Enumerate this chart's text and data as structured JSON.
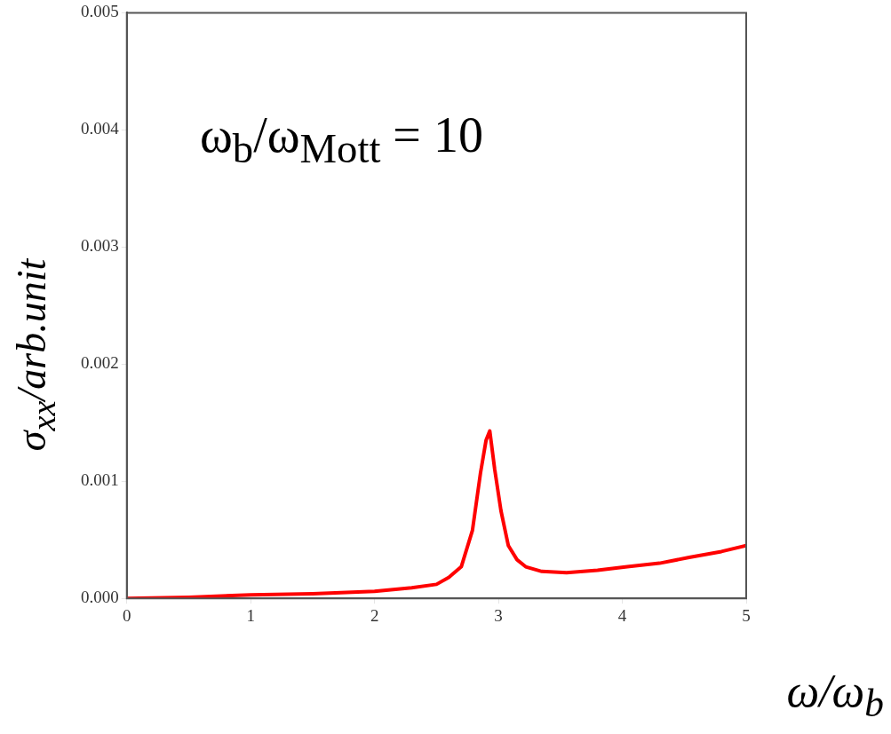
{
  "chart_data": {
    "type": "line",
    "xlabel": "ω/ω$_{b}$",
    "ylabel": "σ$_{xx}$/arb.unit",
    "annotations": [
      "ω$_{b}$/ω$_{Mott}$ = 10"
    ],
    "xlim": [
      0,
      5
    ],
    "xticks": [
      0,
      1,
      2,
      3,
      4,
      5
    ],
    "ylim": [
      0,
      0.005
    ],
    "yticks": [
      {
        "value": 0,
        "label": "0.000"
      },
      {
        "value": 0.001,
        "label": "0.001"
      },
      {
        "value": 0.002,
        "label": "0.002"
      },
      {
        "value": 0.003,
        "label": "0.003"
      },
      {
        "value": 0.004,
        "label": "0.004"
      },
      {
        "value": 0.005,
        "label": "0.005"
      }
    ],
    "grid": false,
    "legend": false,
    "marker": "none",
    "line_style": "solid",
    "series": [
      {
        "color": "#ff0000",
        "x": [
          0,
          0.5,
          1.0,
          1.5,
          2.0,
          2.3,
          2.5,
          2.6,
          2.7,
          2.79,
          2.855,
          2.9,
          2.93,
          2.97,
          3.02,
          3.08,
          3.15,
          3.22,
          3.35,
          3.55,
          3.8,
          4.04,
          4.3,
          4.54,
          4.8,
          5.0
        ],
        "values": [
          0,
          1e-05,
          3e-05,
          4e-05,
          6e-05,
          9e-05,
          0.00012,
          0.00018,
          0.00027,
          0.00058,
          0.00107,
          0.00135,
          0.00143,
          0.0011,
          0.00075,
          0.00045,
          0.00033,
          0.00027,
          0.00023,
          0.00022,
          0.00024,
          0.00027,
          0.0003,
          0.00035,
          0.0004,
          0.00045
        ]
      }
    ]
  }
}
